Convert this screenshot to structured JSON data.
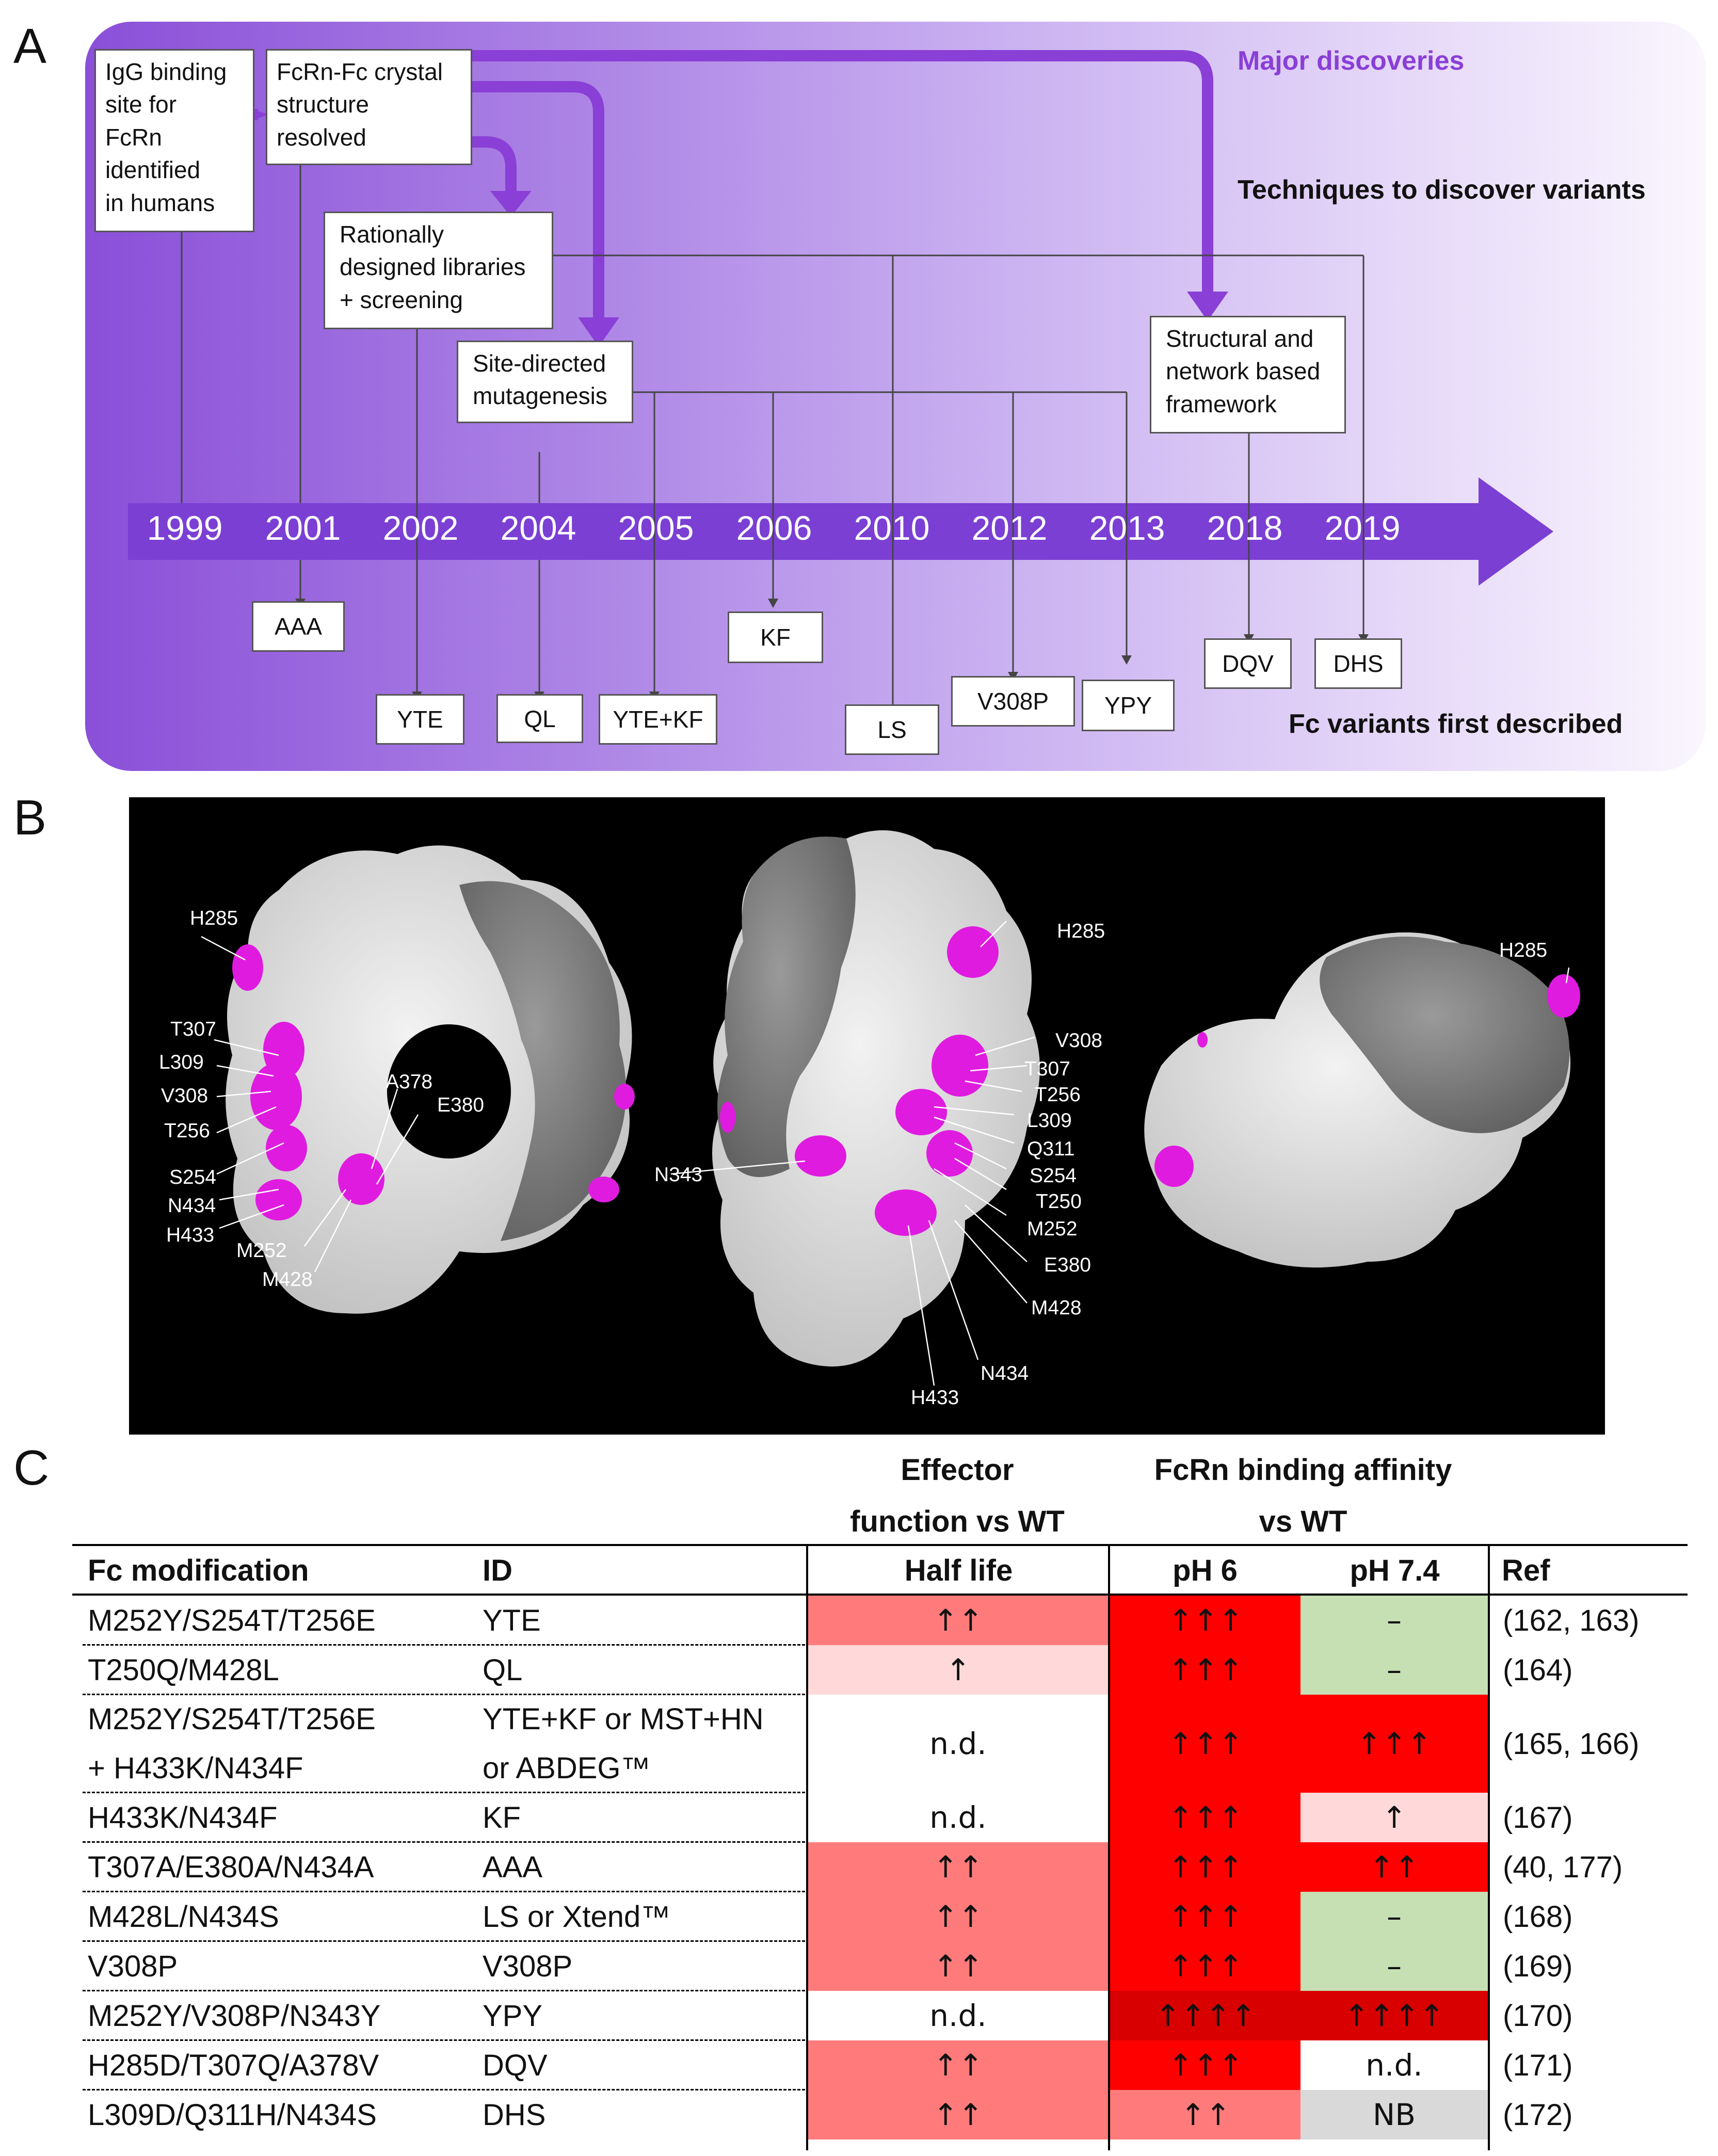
{
  "panel_labels": {
    "a": "A",
    "b": "B",
    "c": "C"
  },
  "timeline": {
    "years": [
      "1999",
      "2001",
      "2002",
      "2004",
      "2005",
      "2006",
      "2010",
      "2012",
      "2013",
      "2018",
      "2019"
    ],
    "header_major": "Major discoveries",
    "header_techniques": "Techniques to discover variants",
    "header_variants": "Fc variants first described",
    "boxes": {
      "igg": "IgG binding\nsite for\nFcRn\nidentified\nin humans",
      "fcrn": "FcRn-Fc crystal\nstructure\nresolved",
      "rational": "Rationally\ndesigned libraries\n+ screening",
      "site": "Site-directed\nmutagenesis",
      "structural": "Structural and\nnetwork based\nframework"
    },
    "variants": [
      "AAA",
      "YTE",
      "QL",
      "YTE+KF",
      "KF",
      "LS",
      "V308P",
      "YPY",
      "DQV",
      "DHS"
    ],
    "colors": {
      "purple_dark": "#7b3fd4",
      "purple_light": "#f3ecfb",
      "major_text": "#8a3fd6"
    }
  },
  "structure": {
    "left_labels": [
      "H285",
      "T307",
      "L309",
      "V308",
      "T256",
      "S254",
      "N434",
      "H433",
      "M252",
      "M428",
      "A378",
      "E380"
    ],
    "middle_labels": [
      "H285",
      "V308",
      "T307",
      "T256",
      "L309",
      "Q311",
      "S254",
      "T250",
      "M252",
      "E380",
      "M428",
      "N434",
      "H433",
      "N343"
    ],
    "right_labels": [
      "H285"
    ],
    "highlight_color": "#e01be0"
  },
  "table": {
    "group_effector_line1": "Effector",
    "group_effector_line2": "function vs WT",
    "group_fcrn_line1": "FcRn binding affinity",
    "group_fcrn_line2": "vs WT",
    "col_mod": "Fc modification",
    "col_id": "ID",
    "col_half": "Half life",
    "col_ph6": "pH 6",
    "col_ph74": "pH 7.4",
    "col_ref": "Ref",
    "rows": [
      {
        "mod": "M252Y/S254T/T256E",
        "id": "YTE",
        "half": "↑↑",
        "ph6": "↑↑↑",
        "ph74": "–",
        "ref": "(162, 163)"
      },
      {
        "mod": "T250Q/M428L",
        "id": "QL",
        "half": "↑",
        "ph6": "↑↑↑",
        "ph74": "–",
        "ref": "(164)"
      },
      {
        "mod": "M252Y/S254T/T256E",
        "mod2": "+ H433K/N434F",
        "id": "YTE+KF or MST+HN",
        "id2": "or ABDEG™",
        "half": "n.d.",
        "ph6": "↑↑↑",
        "ph74": "↑↑↑",
        "ref": "(165, 166)"
      },
      {
        "mod": "H433K/N434F",
        "id": "KF",
        "half": "n.d.",
        "ph6": "↑↑↑",
        "ph74": "↑",
        "ref": "(167)"
      },
      {
        "mod": "T307A/E380A/N434A",
        "id": "AAA",
        "half": "↑↑",
        "ph6": "↑↑↑",
        "ph74": "↑↑",
        "ref": "(40, 177)"
      },
      {
        "mod": "M428L/N434S",
        "id": "LS or Xtend™",
        "half": "↑↑",
        "ph6": "↑↑↑",
        "ph74": "–",
        "ref": "(168)"
      },
      {
        "mod": "V308P",
        "id": "V308P",
        "half": "↑↑",
        "ph6": "↑↑↑",
        "ph74": "–",
        "ref": "(169)"
      },
      {
        "mod": "M252Y/V308P/N343Y",
        "id": "YPY",
        "half": "n.d.",
        "ph6": "↑↑↑↑",
        "ph74": "↑↑↑↑",
        "ref": "(170)"
      },
      {
        "mod": "H285D/T307Q/A378V",
        "id": "DQV",
        "half": "↑↑",
        "ph6": "↑↑↑",
        "ph74": "n.d.",
        "ref": "(171)"
      },
      {
        "mod": "L309D/Q311H/N434S",
        "id": "DHS",
        "half": "↑↑",
        "ph6": "↑↑",
        "ph74": "NB",
        "ref": "(172)"
      }
    ],
    "colors": {
      "salmon": "#ff7b7b",
      "pale_pink": "#ffd9d9",
      "red": "#ff0000",
      "dark_red": "#d80000",
      "green": "#c6e0b4",
      "gray": "#d9d9d9",
      "white": "#ffffff"
    }
  }
}
